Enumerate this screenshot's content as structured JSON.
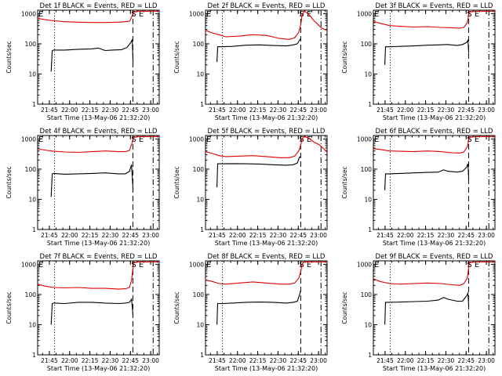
{
  "colors": {
    "events": "#000000",
    "lld": "#e00000",
    "axes": "#000000",
    "background": "#ffffff"
  },
  "chart_data": {
    "type": "line",
    "common": {
      "ylabel": "Counts/sec",
      "yscale": "log",
      "ylim": [
        1,
        1000
      ],
      "yticks": [
        1,
        10,
        100,
        1000
      ],
      "ytick_labels": [
        "1",
        "10",
        "100",
        "1000"
      ],
      "xlim_minutes": [
        0,
        90
      ],
      "xticks_minutes": [
        8.67,
        23.67,
        38.67,
        53.67,
        68.67,
        83.67
      ],
      "xtick_labels": [
        "21:45",
        "22:00",
        "22:15",
        "22:30",
        "22:45",
        "23:00"
      ],
      "xlabel": "Start Time (13-May-06 21:32:20)",
      "legend": "BLACK = Events, RED = LLD",
      "markers": [
        {
          "minute": 12.5,
          "style": "dotted"
        },
        {
          "minute": 70.5,
          "style": "dashed"
        },
        {
          "minute": 85.5,
          "style": "dash-dot"
        }
      ]
    },
    "panels": [
      {
        "title": "Det 1f BLACK = Events, RED = LLD",
        "flags": "E",
        "flags_right": "S E",
        "series": [
          {
            "name": "Events",
            "color": "#000000",
            "x": [
              10,
              10.8,
              12,
              20,
              30,
              40,
              45,
              50,
              55,
              62,
              66,
              69,
              70,
              70.6
            ],
            "y": [
              12,
              60,
              62,
              62,
              66,
              68,
              72,
              60,
              62,
              64,
              75,
              110,
              140,
              25
            ]
          },
          {
            "name": "LLD",
            "color": "#e00000",
            "x": [
              0,
              5,
              12,
              20,
              30,
              40,
              50,
              60,
              65,
              68,
              69.5,
              71,
              74,
              80,
              85,
              90
            ],
            "y": [
              700,
              640,
              580,
              540,
              520,
              510,
              510,
              520,
              540,
              560,
              760,
              1100,
              1200,
              1200,
              1200,
              1200
            ]
          }
        ]
      },
      {
        "title": "Det 2f BLACK = Events, RED = LLD",
        "flags": "E",
        "flags_right": "S E",
        "series": [
          {
            "name": "Events",
            "color": "#000000",
            "x": [
              8.5,
              9,
              12,
              20,
              30,
              40,
              50,
              60,
              65,
              68,
              69.5,
              70.6
            ],
            "y": [
              25,
              80,
              80,
              82,
              90,
              92,
              88,
              85,
              92,
              100,
              130,
              150
            ]
          },
          {
            "name": "LLD",
            "color": "#e00000",
            "x": [
              0,
              5,
              10,
              15,
              25,
              35,
              45,
              55,
              62,
              66,
              69,
              70.6,
              71.5,
              73,
              76,
              80,
              84,
              86,
              88,
              90
            ],
            "y": [
              280,
              230,
              200,
              170,
              180,
              200,
              190,
              150,
              140,
              160,
              240,
              450,
              900,
              1200,
              1000,
              600,
              400,
              330,
              300,
              280
            ]
          }
        ]
      },
      {
        "title": "Det 3f BLACK = Events, RED = LLD",
        "flags": "E",
        "flags_right": "S E",
        "series": [
          {
            "name": "Events",
            "color": "#000000",
            "x": [
              8.5,
              9,
              12,
              20,
              30,
              40,
              48,
              55,
              62,
              66,
              69,
              70,
              70.6
            ],
            "y": [
              20,
              80,
              80,
              82,
              85,
              90,
              92,
              95,
              88,
              95,
              110,
              130,
              50
            ]
          },
          {
            "name": "LLD",
            "color": "#e00000",
            "x": [
              0,
              5,
              12,
              20,
              30,
              40,
              50,
              58,
              64,
              67,
              69.5,
              71,
              74,
              80,
              85,
              90
            ],
            "y": [
              550,
              480,
              400,
              380,
              360,
              370,
              350,
              340,
              330,
              350,
              500,
              1100,
              1200,
              1200,
              1200,
              1200
            ]
          }
        ]
      },
      {
        "title": "Det 4f BLACK = Events, RED = LLD",
        "flags": "E",
        "flags_right": "S E",
        "series": [
          {
            "name": "Events",
            "color": "#000000",
            "x": [
              10,
              10.8,
              12,
              20,
              30,
              40,
              50,
              60,
              65,
              68,
              69.5,
              70.6
            ],
            "y": [
              12,
              70,
              72,
              68,
              70,
              72,
              75,
              70,
              70,
              85,
              140,
              20
            ]
          },
          {
            "name": "LLD",
            "color": "#e00000",
            "x": [
              0,
              5,
              12,
              20,
              30,
              40,
              50,
              60,
              65,
              68,
              69.5,
              71,
              74,
              80,
              85,
              90
            ],
            "y": [
              470,
              430,
              390,
              370,
              360,
              380,
              400,
              380,
              380,
              420,
              650,
              1100,
              1200,
              1200,
              1200,
              1200
            ]
          }
        ]
      },
      {
        "title": "Det 5f BLACK = Events, RED = LLD",
        "flags": "E",
        "flags_right": "S E",
        "series": [
          {
            "name": "Events",
            "color": "#000000",
            "x": [
              8.5,
              9,
              12,
              20,
              30,
              40,
              50,
              60,
              65,
              68,
              69.5,
              70.6
            ],
            "y": [
              25,
              150,
              150,
              152,
              150,
              148,
              140,
              135,
              140,
              160,
              250,
              260
            ]
          },
          {
            "name": "LLD",
            "color": "#e00000",
            "x": [
              0,
              5,
              10,
              15,
              25,
              35,
              45,
              55,
              62,
              66,
              69,
              70.6,
              71.5,
              73,
              76,
              80,
              84,
              86,
              88,
              90
            ],
            "y": [
              380,
              330,
              280,
              260,
              270,
              280,
              260,
              240,
              240,
              270,
              400,
              650,
              1000,
              1200,
              1100,
              800,
              650,
              550,
              450,
              360
            ]
          }
        ]
      },
      {
        "title": "Det 6f BLACK = Events, RED = LLD",
        "flags": "E",
        "flags_right": "S E",
        "series": [
          {
            "name": "Events",
            "color": "#000000",
            "x": [
              8.5,
              9,
              12,
              20,
              30,
              40,
              48,
              52,
              55,
              62,
              66,
              69,
              70,
              70.6
            ],
            "y": [
              20,
              70,
              70,
              72,
              75,
              78,
              80,
              95,
              85,
              80,
              85,
              115,
              150,
              45
            ]
          },
          {
            "name": "LLD",
            "color": "#e00000",
            "x": [
              0,
              5,
              12,
              20,
              30,
              40,
              50,
              58,
              64,
              67,
              69.5,
              71,
              74,
              80,
              85,
              90
            ],
            "y": [
              480,
              450,
              400,
              390,
              380,
              400,
              380,
              350,
              340,
              370,
              550,
              1100,
              1200,
              1200,
              1200,
              1200
            ]
          }
        ]
      },
      {
        "title": "Det 7f BLACK = Events, RED = LLD",
        "flags": "E",
        "flags_right": "S E",
        "series": [
          {
            "name": "Events",
            "color": "#000000",
            "x": [
              10,
              10.8,
              12,
              20,
              30,
              40,
              50,
              60,
              65,
              68,
              69.5,
              70.6
            ],
            "y": [
              10,
              50,
              52,
              50,
              55,
              55,
              52,
              50,
              52,
              55,
              70,
              20
            ]
          },
          {
            "name": "LLD",
            "color": "#e00000",
            "x": [
              0,
              5,
              12,
              20,
              30,
              40,
              50,
              60,
              65,
              68,
              69.5,
              71,
              74,
              80,
              85,
              90
            ],
            "y": [
              220,
              190,
              170,
              165,
              170,
              160,
              160,
              150,
              155,
              170,
              300,
              1100,
              1200,
              1200,
              1200,
              1200
            ]
          }
        ]
      },
      {
        "title": "Det 8f BLACK = Events, RED = LLD",
        "flags": "E",
        "flags_right": "S E",
        "series": [
          {
            "name": "Events",
            "color": "#000000",
            "x": [
              8.5,
              9,
              12,
              20,
              30,
              40,
              50,
              60,
              65,
              68,
              69.5,
              70.6
            ],
            "y": [
              10,
              50,
              50,
              52,
              55,
              56,
              55,
              52,
              55,
              60,
              95,
              140
            ]
          },
          {
            "name": "LLD",
            "color": "#e00000",
            "x": [
              0,
              5,
              10,
              15,
              25,
              35,
              45,
              55,
              62,
              66,
              69,
              70.6,
              71.5,
              73,
              76,
              80,
              84,
              86,
              88,
              90
            ],
            "y": [
              300,
              270,
              230,
              220,
              240,
              260,
              240,
              220,
              220,
              240,
              340,
              600,
              1000,
              1200,
              1200,
              1200,
              1200,
              1200,
              1200,
              1200
            ]
          }
        ]
      },
      {
        "title": "Det 9f BLACK = Events, RED = LLD",
        "flags": "E",
        "flags_right": "S E",
        "series": [
          {
            "name": "Events",
            "color": "#000000",
            "x": [
              8.5,
              9,
              12,
              20,
              30,
              40,
              48,
              52,
              55,
              62,
              66,
              69,
              70,
              70.6
            ],
            "y": [
              10,
              55,
              55,
              56,
              58,
              60,
              65,
              80,
              70,
              60,
              60,
              90,
              110,
              40
            ]
          },
          {
            "name": "LLD",
            "color": "#e00000",
            "x": [
              0,
              5,
              12,
              20,
              30,
              40,
              50,
              58,
              64,
              67,
              69.5,
              71,
              74,
              80,
              85,
              90
            ],
            "y": [
              330,
              270,
              230,
              220,
              230,
              240,
              230,
              210,
              200,
              230,
              350,
              1100,
              1200,
              1200,
              1200,
              1200
            ]
          }
        ]
      }
    ]
  }
}
